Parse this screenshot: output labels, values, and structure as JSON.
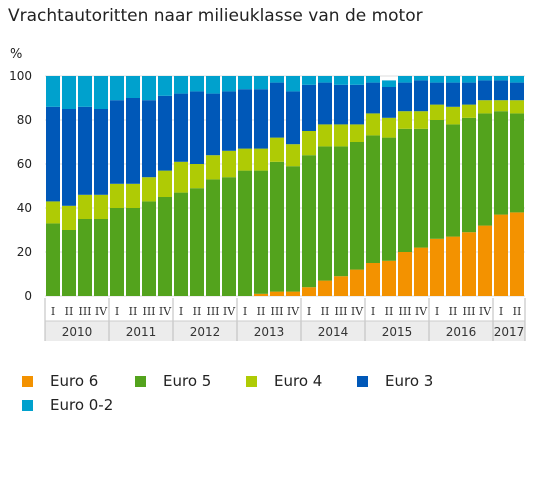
{
  "chart_data": {
    "type": "bar",
    "stacked": true,
    "title": "Vrachtautoritten naar milieuklasse van de motor",
    "ylabel": "%",
    "ylim": [
      0,
      100
    ],
    "yticks": [
      0,
      20,
      40,
      60,
      80,
      100
    ],
    "quarter_labels": [
      "I",
      "II",
      "III",
      "IV",
      "I",
      "II",
      "III",
      "IV",
      "I",
      "II",
      "III",
      "IV",
      "I",
      "II",
      "III",
      "IV",
      "I",
      "II",
      "III",
      "IV",
      "I",
      "II",
      "III",
      "IV",
      "I",
      "II",
      "III",
      "IV",
      "I",
      "II"
    ],
    "years": [
      {
        "label": "2010",
        "quarters": 4
      },
      {
        "label": "2011",
        "quarters": 4
      },
      {
        "label": "2012",
        "quarters": 4
      },
      {
        "label": "2013",
        "quarters": 4
      },
      {
        "label": "2014",
        "quarters": 4
      },
      {
        "label": "2015",
        "quarters": 4
      },
      {
        "label": "2016",
        "quarters": 4
      },
      {
        "label": "2017",
        "quarters": 2
      }
    ],
    "series": [
      {
        "name": "Euro 6",
        "color": "#f39200",
        "values": [
          0,
          0,
          0,
          0,
          0,
          0,
          0,
          0,
          0,
          0,
          0,
          0,
          0,
          1,
          2,
          2,
          4,
          7,
          9,
          12,
          15,
          16,
          20,
          22,
          26,
          27,
          29,
          32,
          37,
          38
        ]
      },
      {
        "name": "Euro 5",
        "color": "#53a31d",
        "values": [
          33,
          30,
          35,
          35,
          40,
          40,
          43,
          45,
          47,
          49,
          53,
          54,
          57,
          56,
          59,
          57,
          60,
          61,
          59,
          58,
          58,
          56,
          56,
          54,
          54,
          51,
          52,
          51,
          47,
          45
        ]
      },
      {
        "name": "Euro 4",
        "color": "#afcb05",
        "values": [
          10,
          11,
          11,
          11,
          11,
          11,
          11,
          12,
          14,
          11,
          11,
          12,
          10,
          10,
          11,
          10,
          11,
          10,
          10,
          8,
          10,
          9,
          8,
          8,
          7,
          8,
          6,
          6,
          5,
          6
        ]
      },
      {
        "name": "Euro 3",
        "color": "#0058b8",
        "values": [
          43,
          44,
          40,
          39,
          38,
          39,
          35,
          34,
          31,
          33,
          28,
          27,
          27,
          27,
          25,
          24,
          21,
          19,
          18,
          18,
          14,
          14,
          13,
          14,
          10,
          11,
          10,
          9,
          9,
          8
        ]
      },
      {
        "name": "Euro 0-2",
        "color": "#00a1cd",
        "values": [
          14,
          15,
          14,
          15,
          11,
          10,
          11,
          9,
          8,
          7,
          8,
          7,
          6,
          6,
          3,
          7,
          4,
          3,
          4,
          4,
          3,
          3,
          3,
          2,
          3,
          3,
          3,
          2,
          2,
          3
        ]
      }
    ]
  },
  "legend": [
    {
      "label": "Euro 6",
      "color": "#f39200"
    },
    {
      "label": "Euro 5",
      "color": "#53a31d"
    },
    {
      "label": "Euro 4",
      "color": "#afcb05"
    },
    {
      "label": "Euro 3",
      "color": "#0058b8"
    },
    {
      "label": "Euro 0-2",
      "color": "#00a1cd"
    }
  ]
}
